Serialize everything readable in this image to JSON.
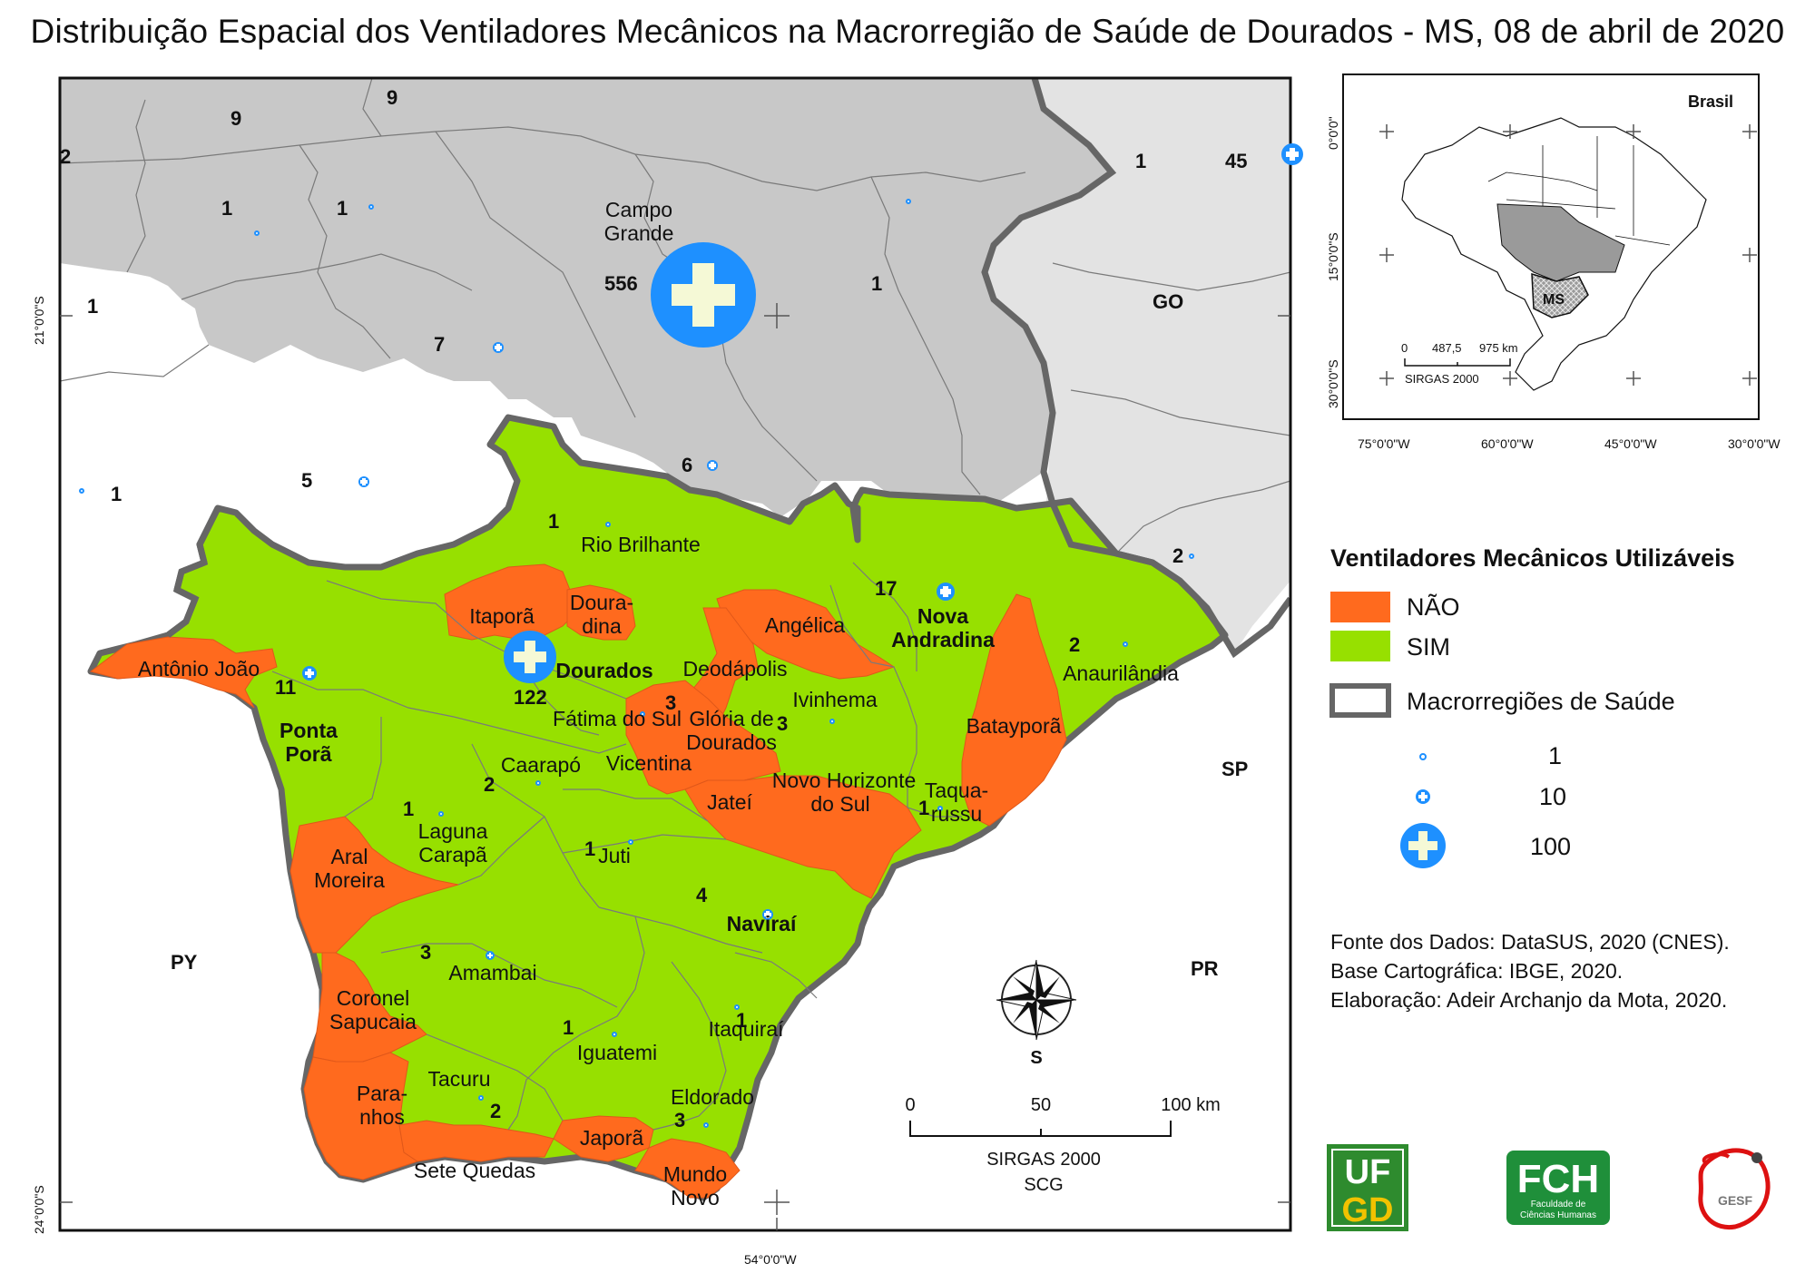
{
  "title": "Distribuição Espacial dos Ventiladores Mecânicos na Macrorregião de Saúde de Dourados - MS, 08 de abril de 2020",
  "colors": {
    "nao": "#ff6a1e",
    "sim": "#97e000",
    "outside": "#c8c8c8",
    "outside_light": "#e3e3e3",
    "symbol": "#1e90ff",
    "symbol_cross": "#f5f9d6"
  },
  "legend": {
    "title": "Ventiladores Mecânicos Utilizáveis",
    "nao": "NÃO",
    "sim": "SIM",
    "macro": "Macrorregiões de Saúde",
    "sizes": [
      "1",
      "10",
      "100"
    ]
  },
  "source": {
    "line1": "Fonte dos Dados: DataSUS, 2020 (CNES).",
    "line2": "Base Cartográfica: IBGE, 2020.",
    "line3": "Elaboração: Adeir Archanjo da Mota, 2020."
  },
  "scale_bar": {
    "t0": "0",
    "t1": "50",
    "t2": "100 km",
    "datum": "SIRGAS 2000",
    "proj": "SCG"
  },
  "north_label": "S",
  "coords": {
    "lat21": "21°0'0\"S",
    "lat24": "24°0'0\"S",
    "lon54": "54°0'0\"W"
  },
  "inset": {
    "title": "Brasil",
    "ms": "MS",
    "lat_labels": [
      "0°0'0\"",
      "15°0'0\"S",
      "30°0'0\"S"
    ],
    "lon_labels": [
      "75°0'0\"W",
      "60°0'0\"W",
      "45°0'0\"W",
      "30°0'0\"W"
    ],
    "scale_labels": [
      "0",
      "487,5",
      "975 km"
    ],
    "datum": "SIRGAS 2000"
  },
  "states": {
    "go": "GO",
    "sp": "SP",
    "pr": "PR",
    "py": "PY"
  },
  "municipalities": {
    "campo_grande_1": "Campo",
    "campo_grande_2": "Grande",
    "rio_brilhante": "Rio Brilhante",
    "itapora": "Itaporã",
    "douradina_1": "Doura-",
    "douradina_2": "dina",
    "dourados": "Dourados",
    "antonio_joao": "Antônio João",
    "ponta_pora_1": "Ponta",
    "ponta_pora_2": "Porã",
    "angelica": "Angélica",
    "nova_andradina_1": "Nova",
    "nova_andradina_2": "Andradina",
    "anaurilandia": "Anaurilândia",
    "deodapolis": "Deodápolis",
    "ivinhema": "Ivinhema",
    "fatima": "Fátima do Sul",
    "gloria_1": "Glória de",
    "gloria_2": "Dourados",
    "vicentina": "Vicentina",
    "bataypora": "Batayporã",
    "caarapo": "Caarapó",
    "nova_horizonte_1": "Novo Horizonte",
    "nova_horizonte_2": "do Sul",
    "jatei": "Jateí",
    "taquarussu_1": "Taqua-",
    "taquarussu_2": "russu",
    "laguna_1": "Laguna",
    "laguna_2": "Carapã",
    "aral_1": "Aral",
    "aral_2": "Moreira",
    "juti": "Juti",
    "navirai": "Naviraí",
    "amambai": "Amambai",
    "coronel_1": "Coronel",
    "coronel_2": "Sapucaia",
    "iguatemi": "Iguatemi",
    "itaquirai": "Itaquiraí",
    "tacuru": "Tacuru",
    "paranhos_1": "Para-",
    "paranhos_2": "nhos",
    "eldorado": "Eldorado",
    "japora": "Japorã",
    "sete_quedas": "Sete Quedas",
    "mundo_novo_1": "Mundo",
    "mundo_novo_2": "Novo"
  },
  "counts": {
    "c9a": "9",
    "c9b": "9",
    "c2a": "2",
    "c1a": "1",
    "c1b": "1",
    "c1c": "1",
    "c7": "7",
    "c5": "5",
    "c1d": "1",
    "c556": "556",
    "c1e": "1",
    "c6": "6",
    "c1f": "1",
    "c45": "45",
    "c2b": "2",
    "c1rb": "1",
    "c122": "122",
    "c11": "11",
    "c17": "17",
    "c2anau": "2",
    "c3fat": "3",
    "c3glo": "3",
    "c2caa": "2",
    "c1lag": "1",
    "c1juti": "1",
    "c1taq": "1",
    "c4": "4",
    "c3amb": "3",
    "c1igu": "1",
    "c1itaq": "1",
    "c2tac": "2",
    "c3eld": "3"
  },
  "logos": {
    "ufgd_1": "UF",
    "ufgd_2": "GD",
    "fch": "FCH",
    "fch_sub1": "Faculdade de",
    "fch_sub2": "Ciências Humanas",
    "gesf": "GESF"
  }
}
